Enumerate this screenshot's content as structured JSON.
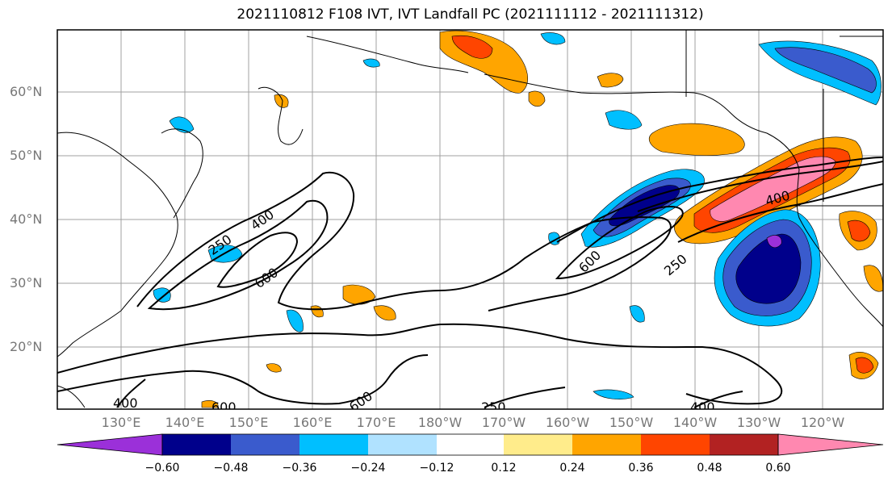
{
  "title": "2021110812 F108 IVT, IVT Landfall PC (2021111112 - 2021111312)",
  "lat_labels": [
    "60°N",
    "50°N",
    "40°N",
    "30°N",
    "20°N"
  ],
  "lon_labels": [
    "130°E",
    "140°E",
    "150°E",
    "160°E",
    "170°E",
    "180°W",
    "170°W",
    "160°W",
    "150°W",
    "140°W",
    "130°W",
    "120°W"
  ],
  "contour_labels": [
    "250",
    "400",
    "600",
    "600",
    "250",
    "400",
    "400",
    "600",
    "250",
    "400",
    "600"
  ],
  "colorbar": {
    "tick_labels": [
      "−0.60",
      "−0.48",
      "−0.36",
      "−0.24",
      "−0.12",
      "0.12",
      "0.24",
      "0.36",
      "0.48",
      "0.60"
    ],
    "colors": [
      "#9b30d9",
      "#00008b",
      "#3a5bcd",
      "#00bfff",
      "#b0e2ff",
      "#ffffff",
      "#ffec8b",
      "#ffa500",
      "#ff4500",
      "#b22222",
      "#ff88b0"
    ]
  },
  "legend_note": "",
  "colors": {
    "frame": "#000000",
    "grid": "#a0a0a0",
    "axis_text": "#777777"
  }
}
